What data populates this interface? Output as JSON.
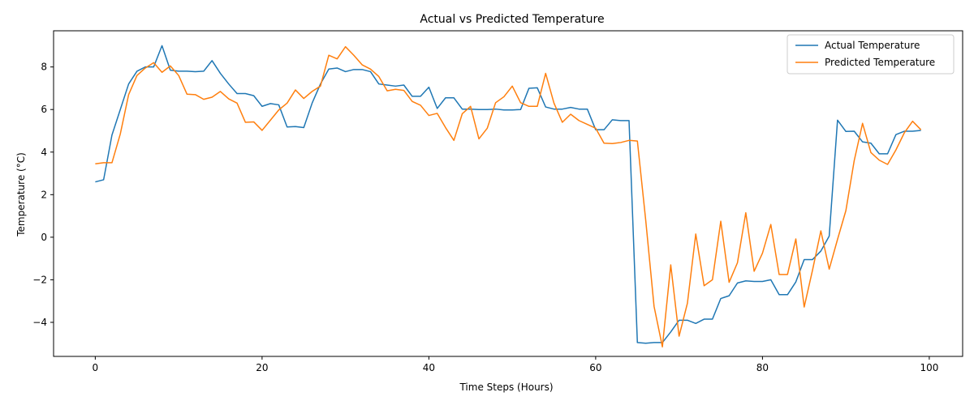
{
  "chart_data": {
    "type": "line",
    "title": "Actual vs Predicted Temperature",
    "xlabel": "Time Steps (Hours)",
    "ylabel": "Temperature (°C)",
    "xlim": [
      -5,
      104
    ],
    "ylim": [
      -5.6,
      9.7
    ],
    "xticks": [
      0,
      20,
      40,
      60,
      80,
      100
    ],
    "yticks": [
      -4,
      -2,
      0,
      2,
      4,
      6,
      8
    ],
    "grid": false,
    "legend": "top-right",
    "series": [
      {
        "name": "Actual Temperature",
        "color": "#1f77b4",
        "values": [
          2.6,
          2.7,
          4.8,
          6.0,
          7.2,
          7.8,
          8.0,
          8.0,
          9.0,
          7.85,
          7.8,
          7.8,
          7.78,
          7.8,
          8.3,
          7.7,
          7.2,
          6.75,
          6.75,
          6.65,
          6.15,
          6.28,
          6.22,
          5.18,
          5.2,
          5.15,
          6.3,
          7.2,
          7.9,
          7.95,
          7.78,
          7.88,
          7.88,
          7.78,
          7.2,
          7.15,
          7.1,
          7.15,
          6.62,
          6.62,
          7.05,
          6.05,
          6.55,
          6.55,
          6.02,
          6.02,
          6.0,
          6.0,
          6.02,
          5.98,
          5.98,
          6.0,
          7.0,
          7.02,
          6.12,
          6.02,
          6.02,
          6.1,
          6.02,
          6.02,
          5.05,
          5.05,
          5.52,
          5.48,
          5.48,
          -4.95,
          -4.98,
          -4.95,
          -4.95,
          -4.45,
          -3.9,
          -3.9,
          -4.05,
          -3.85,
          -3.85,
          -2.88,
          -2.75,
          -2.15,
          -2.05,
          -2.08,
          -2.08,
          -2.0,
          -2.7,
          -2.7,
          -2.1,
          -1.05,
          -1.05,
          -0.65,
          0.05,
          5.5,
          4.97,
          4.98,
          4.48,
          4.42,
          3.92,
          3.92,
          4.82,
          4.98,
          4.98,
          5.02
        ]
      },
      {
        "name": "Predicted Temperature",
        "color": "#ff7f0e",
        "values": [
          3.45,
          3.5,
          3.5,
          4.85,
          6.7,
          7.6,
          7.95,
          8.2,
          7.75,
          8.05,
          7.6,
          6.72,
          6.7,
          6.48,
          6.58,
          6.85,
          6.5,
          6.3,
          5.4,
          5.42,
          5.02,
          5.5,
          5.98,
          6.3,
          6.92,
          6.52,
          6.85,
          7.1,
          8.55,
          8.38,
          8.95,
          8.55,
          8.1,
          7.9,
          7.55,
          6.88,
          6.95,
          6.9,
          6.38,
          6.2,
          5.72,
          5.82,
          5.15,
          4.55,
          5.8,
          6.15,
          4.62,
          5.12,
          6.32,
          6.6,
          7.1,
          6.32,
          6.15,
          6.15,
          7.7,
          6.3,
          5.4,
          5.78,
          5.48,
          5.3,
          5.12,
          4.42,
          4.4,
          4.45,
          4.55,
          4.52,
          0.8,
          -3.25,
          -5.15,
          -1.3,
          -4.65,
          -3.1,
          0.15,
          -2.28,
          -2.0,
          0.75,
          -2.12,
          -1.2,
          1.15,
          -1.6,
          -0.75,
          0.6,
          -1.75,
          -1.75,
          -0.08,
          -3.28,
          -1.55,
          0.3,
          -1.5,
          -0.1,
          1.25,
          3.6,
          5.35,
          3.98,
          3.62,
          3.42,
          4.1,
          4.9,
          5.45,
          5.05
        ]
      }
    ]
  }
}
